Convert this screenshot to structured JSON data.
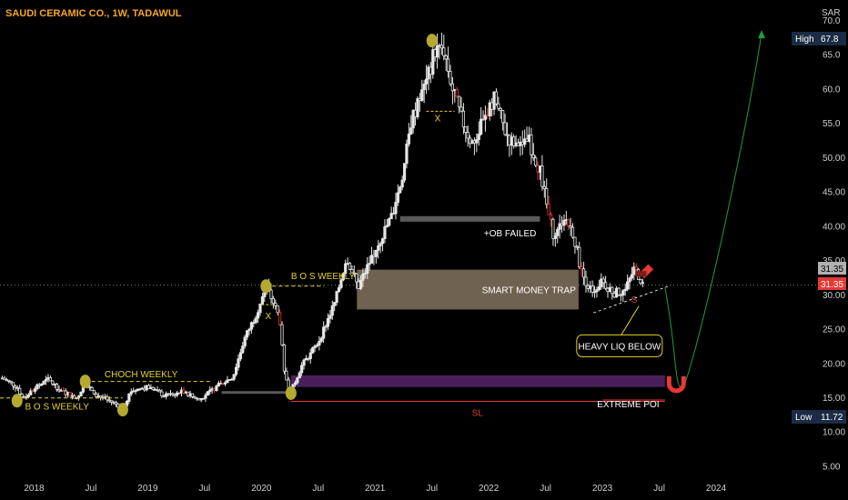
{
  "title": "SAUDI CERAMIC CO., 1W, TADAWUL",
  "chart_data": {
    "type": "candlestick",
    "currency": "SAR",
    "y_axis": {
      "min": 4.0,
      "max": 70.0,
      "ticks": [
        5.0,
        10.0,
        15.0,
        20.0,
        25.0,
        30.0,
        35.0,
        40.0,
        45.0,
        50.0,
        55.0,
        60.0,
        65.0,
        70.0
      ],
      "tick_labels": [
        "5.00",
        "10.00",
        "15.00",
        "20.00",
        "25.00",
        "30.00",
        "35.00",
        "40.00",
        "45.00",
        "50.00",
        "55.0",
        "60.0",
        "65.0",
        "70.0"
      ]
    },
    "x_axis": {
      "labels": [
        {
          "label": "2018",
          "t": 2018.0
        },
        {
          "label": "Jul",
          "t": 2018.5
        },
        {
          "label": "2019",
          "t": 2019.0
        },
        {
          "label": "Jul",
          "t": 2019.5
        },
        {
          "label": "2020",
          "t": 2020.0
        },
        {
          "label": "Jul",
          "t": 2020.5
        },
        {
          "label": "2021",
          "t": 2021.0
        },
        {
          "label": "Jul",
          "t": 2021.5
        },
        {
          "label": "2022",
          "t": 2022.0
        },
        {
          "label": "Jul",
          "t": 2022.5
        },
        {
          "label": "2023",
          "t": 2023.0
        },
        {
          "label": "Jul",
          "t": 2023.5
        },
        {
          "label": "2024",
          "t": 2024.0
        }
      ],
      "range": [
        2017.7,
        2024.6
      ]
    },
    "price_keypoints": [
      {
        "t": 2017.72,
        "p": 17.8
      },
      {
        "t": 2017.85,
        "p": 16.5
      },
      {
        "t": 2017.9,
        "p": 14.8
      },
      {
        "t": 2018.0,
        "p": 16.2
      },
      {
        "t": 2018.12,
        "p": 17.6
      },
      {
        "t": 2018.25,
        "p": 15.8
      },
      {
        "t": 2018.38,
        "p": 14.9
      },
      {
        "t": 2018.45,
        "p": 17.3
      },
      {
        "t": 2018.55,
        "p": 15.3
      },
      {
        "t": 2018.7,
        "p": 14.2
      },
      {
        "t": 2018.78,
        "p": 13.4
      },
      {
        "t": 2018.85,
        "p": 15.9
      },
      {
        "t": 2019.0,
        "p": 16.5
      },
      {
        "t": 2019.15,
        "p": 15.2
      },
      {
        "t": 2019.3,
        "p": 15.8
      },
      {
        "t": 2019.45,
        "p": 14.6
      },
      {
        "t": 2019.6,
        "p": 16.5
      },
      {
        "t": 2019.75,
        "p": 18.0
      },
      {
        "t": 2019.85,
        "p": 23.5
      },
      {
        "t": 2019.95,
        "p": 27.0
      },
      {
        "t": 2020.04,
        "p": 31.2
      },
      {
        "t": 2020.1,
        "p": 29.0
      },
      {
        "t": 2020.16,
        "p": 26.5
      },
      {
        "t": 2020.2,
        "p": 18.5
      },
      {
        "t": 2020.26,
        "p": 15.8
      },
      {
        "t": 2020.35,
        "p": 19.5
      },
      {
        "t": 2020.5,
        "p": 23.0
      },
      {
        "t": 2020.65,
        "p": 29.0
      },
      {
        "t": 2020.75,
        "p": 35.5
      },
      {
        "t": 2020.85,
        "p": 31.0
      },
      {
        "t": 2021.0,
        "p": 36.5
      },
      {
        "t": 2021.15,
        "p": 41.5
      },
      {
        "t": 2021.25,
        "p": 48.0
      },
      {
        "t": 2021.32,
        "p": 55.5
      },
      {
        "t": 2021.4,
        "p": 58.5
      },
      {
        "t": 2021.47,
        "p": 62.0
      },
      {
        "t": 2021.52,
        "p": 65.5
      },
      {
        "t": 2021.6,
        "p": 66.0
      },
      {
        "t": 2021.68,
        "p": 60.0
      },
      {
        "t": 2021.75,
        "p": 56.0
      },
      {
        "t": 2021.85,
        "p": 52.0
      },
      {
        "t": 2021.95,
        "p": 55.0
      },
      {
        "t": 2022.05,
        "p": 58.5
      },
      {
        "t": 2022.15,
        "p": 53.5
      },
      {
        "t": 2022.25,
        "p": 51.0
      },
      {
        "t": 2022.35,
        "p": 52.5
      },
      {
        "t": 2022.45,
        "p": 48.0
      },
      {
        "t": 2022.52,
        "p": 42.0
      },
      {
        "t": 2022.58,
        "p": 38.0
      },
      {
        "t": 2022.66,
        "p": 41.5
      },
      {
        "t": 2022.74,
        "p": 39.0
      },
      {
        "t": 2022.82,
        "p": 33.0
      },
      {
        "t": 2022.9,
        "p": 30.5
      },
      {
        "t": 2023.0,
        "p": 31.8
      },
      {
        "t": 2023.1,
        "p": 30.2
      },
      {
        "t": 2023.2,
        "p": 30.6
      },
      {
        "t": 2023.28,
        "p": 33.8
      },
      {
        "t": 2023.36,
        "p": 31.35
      }
    ],
    "last_price": {
      "value": 31.35,
      "label": "31.35",
      "color": "#e53935"
    },
    "high": {
      "label": "High",
      "value": "67.8"
    },
    "low": {
      "label": "Low",
      "value": "11.72"
    },
    "zones": [
      {
        "label": "+OB FAILED",
        "t0": 2021.22,
        "t1": 2022.45,
        "y0": 40.6,
        "y1": 41.4,
        "color": "#5a5a5a",
        "label_color": "#ffffff"
      },
      {
        "label": "SMART MONEY TRAP",
        "t0": 2020.84,
        "t1": 2022.79,
        "y0": 27.8,
        "y1": 33.6,
        "color": "#6f6250",
        "label_color": "#ffffff"
      },
      {
        "label": "",
        "t0": 2020.26,
        "t1": 2023.55,
        "y0": 16.5,
        "y1": 18.2,
        "color": "#4a1f5c",
        "label_color": "#ffffff"
      },
      {
        "label": "",
        "t0": 2019.65,
        "t1": 2020.23,
        "y0": 15.5,
        "y1": 15.9,
        "color": "#5a5a5a",
        "label_color": "#ffffff"
      }
    ],
    "lines": [
      {
        "label": "B O S WEEKLY",
        "t0": 2020.04,
        "t1": 2020.55,
        "y": 31.2,
        "style": "dashed",
        "color": "#e6d22a"
      },
      {
        "label": "CHOCH WEEKLY",
        "t0": 2018.45,
        "t1": 2019.55,
        "y": 17.3,
        "style": "dashed",
        "color": "#e6d22a"
      },
      {
        "label": "B O S WEEKLY",
        "t0": 2017.7,
        "t1": 2018.78,
        "y": 14.9,
        "style": "dashed",
        "color": "#e6d22a"
      },
      {
        "label": "SL",
        "t0": 2020.26,
        "t1": 2023.55,
        "y": 14.4,
        "style": "solid",
        "color": "#e53935"
      },
      {
        "label": "EXTREME POI",
        "t0": 2023.0,
        "t1": 2023.55,
        "y": 14.6,
        "style": "solid",
        "color": "#e53935"
      }
    ],
    "labels": [
      {
        "text": "X",
        "t": 2020.06,
        "y": 26.4,
        "color": "#e6d22a"
      },
      {
        "text": "X",
        "t": 2021.55,
        "y": 55.2,
        "color": "#e6d22a"
      },
      {
        "text": "S",
        "t": 2023.28,
        "y": 28.8,
        "color": "#e53935"
      }
    ],
    "callout": {
      "text": "HEAVY LIQ BELOW",
      "t": 2023.15,
      "y": 22.5,
      "border_color": "#e6d22a"
    },
    "projection": {
      "path": [
        [
          2023.55,
          31.0
        ],
        [
          2023.65,
          17.0
        ],
        [
          2023.9,
          30.0
        ],
        [
          2024.2,
          55.0
        ],
        [
          2024.4,
          68.0
        ]
      ],
      "color": "#1f9d3a"
    },
    "colors": {
      "bull": "#e6e6e6",
      "bear": "#e6e6e6",
      "bear_accent": "#e53935",
      "marker": "#b5a92f",
      "bg": "#000000",
      "axis_text": "#cfcfcf"
    }
  }
}
